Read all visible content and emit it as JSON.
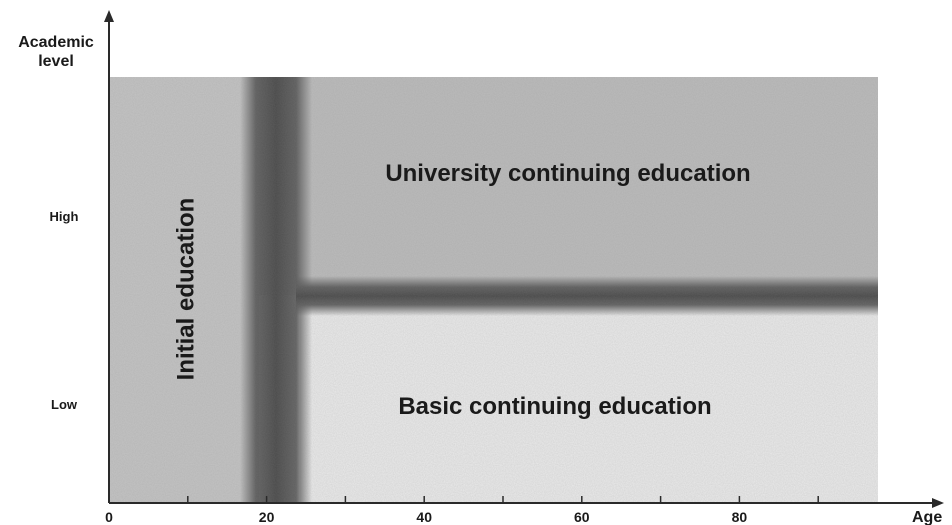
{
  "axes": {
    "y_title_line1": "Academic",
    "y_title_line2": "level",
    "x_title": "Age",
    "x_ticks": [
      {
        "value": 0,
        "label": "0"
      },
      {
        "value": 10,
        "label": ""
      },
      {
        "value": 20,
        "label": "20"
      },
      {
        "value": 30,
        "label": ""
      },
      {
        "value": 40,
        "label": "40"
      },
      {
        "value": 50,
        "label": ""
      },
      {
        "value": 60,
        "label": "60"
      },
      {
        "value": 70,
        "label": ""
      },
      {
        "value": 80,
        "label": "80"
      },
      {
        "value": 90,
        "label": ""
      }
    ],
    "y_high_label": "High",
    "y_low_label": "Low"
  },
  "regions": {
    "initial_label": "Initial education",
    "university_label": "University continuing education",
    "basic_label": "Basic continuing education"
  },
  "colors": {
    "initial_region": "#c4c4c4",
    "university_region": "#bcbcbc",
    "basic_region": "#ebebeb",
    "band": "#5a5a5a",
    "axis": "#2a2a2a",
    "text": "#1a1a1a"
  }
}
